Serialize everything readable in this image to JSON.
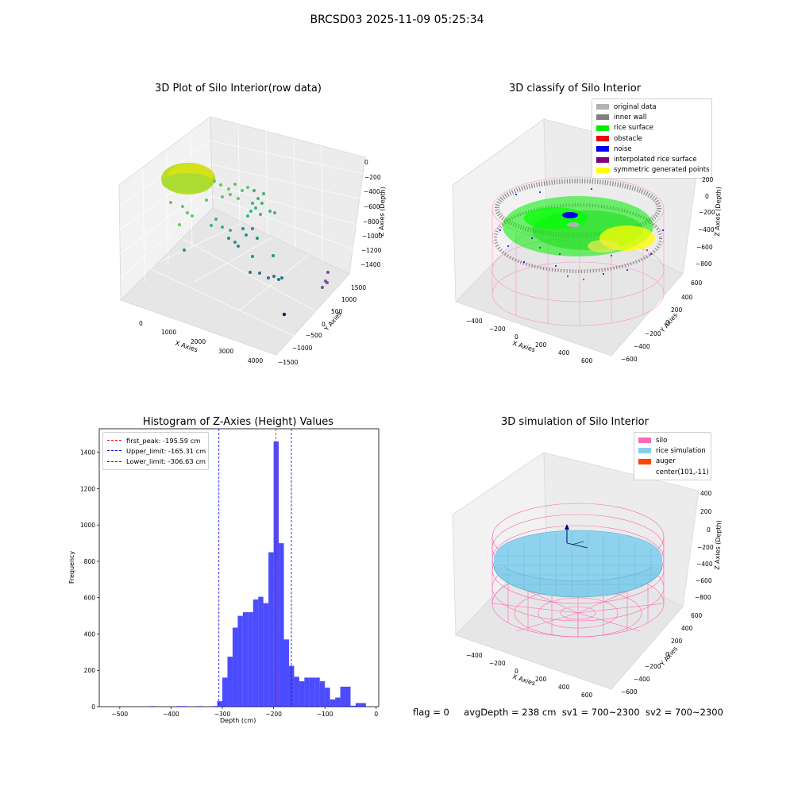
{
  "suptitle": "BRCSD03 2025-11-09 05:25:34",
  "panels": {
    "raw": {
      "title": "3D Plot of Silo Interior(row data)",
      "xlabel": "X Axies",
      "ylabel": "Y Axies",
      "zlabel": "Z Axies (Depth)",
      "xticks": [
        "0",
        "1000",
        "2000",
        "3000",
        "4000"
      ],
      "yticks": [
        "−1500",
        "−1000",
        "−500",
        "0",
        "500",
        "1000",
        "1500"
      ],
      "zticks": [
        "0",
        "−200",
        "−400",
        "−600",
        "−800",
        "−1000",
        "−1200",
        "−1400"
      ]
    },
    "classify": {
      "title": "3D classify of Silo Interior",
      "xlabel": "X Axies",
      "ylabel": "Y Axies",
      "zlabel": "Z Axies (Depth)",
      "xticks": [
        "−400",
        "−200",
        "0",
        "200",
        "400",
        "600"
      ],
      "yticks": [
        "−600",
        "−400",
        "−200",
        "0",
        "200",
        "400",
        "600"
      ],
      "zticks": [
        "200",
        "0",
        "−200",
        "−400",
        "−600",
        "−800"
      ],
      "legend": [
        {
          "label": "original data",
          "color": "#b3b3b3"
        },
        {
          "label": "inner wall",
          "color": "#808080"
        },
        {
          "label": "rice surface",
          "color": "#00ee00"
        },
        {
          "label": "obstacle",
          "color": "#ee0000"
        },
        {
          "label": "noise",
          "color": "#0000ee"
        },
        {
          "label": "interpolated rice surface",
          "color": "#800080"
        },
        {
          "label": "symmetric generated points",
          "color": "#ffff00"
        }
      ]
    },
    "simulation": {
      "title": "3D simulation of Silo Interior",
      "xlabel": "X Axies",
      "ylabel": "Y Axies",
      "zlabel": "Z Axies (Depth)",
      "xticks": [
        "−400",
        "−200",
        "0",
        "200",
        "400",
        "600"
      ],
      "yticks": [
        "−600",
        "−400",
        "−200",
        "0",
        "200",
        "400",
        "600"
      ],
      "zticks": [
        "400",
        "200",
        "0",
        "−200",
        "−400",
        "−600",
        "−800"
      ],
      "legend": [
        {
          "label": "silo",
          "color": "#ff69b4"
        },
        {
          "label": "rice simulation",
          "color": "#87ceeb"
        },
        {
          "label": "auger",
          "color": "#ff4500"
        },
        {
          "label": "center(101,-11)",
          "color": ""
        }
      ]
    }
  },
  "chart_data": [
    {
      "type": "bar",
      "title": "Histogram of Z-Axies (Height) Values",
      "xlabel": "Depth (cm)",
      "ylabel": "Frequency",
      "xlim": [
        -540,
        5
      ],
      "ylim": [
        0,
        1530
      ],
      "xticks": [
        -500,
        -400,
        -300,
        -200,
        -100,
        0
      ],
      "yticks": [
        0,
        200,
        400,
        600,
        800,
        1000,
        1200,
        1400
      ],
      "bar_color": "#0000ff",
      "bin_width": 10,
      "bins": [
        {
          "x": -440,
          "count": 3
        },
        {
          "x": -390,
          "count": 3
        },
        {
          "x": -380,
          "count": 3
        },
        {
          "x": -350,
          "count": 3
        },
        {
          "x": -320,
          "count": 3
        },
        {
          "x": -310,
          "count": 30
        },
        {
          "x": -300,
          "count": 160
        },
        {
          "x": -290,
          "count": 275
        },
        {
          "x": -280,
          "count": 435
        },
        {
          "x": -270,
          "count": 500
        },
        {
          "x": -260,
          "count": 520
        },
        {
          "x": -250,
          "count": 520
        },
        {
          "x": -240,
          "count": 590
        },
        {
          "x": -230,
          "count": 605
        },
        {
          "x": -220,
          "count": 570
        },
        {
          "x": -210,
          "count": 850
        },
        {
          "x": -200,
          "count": 1460
        },
        {
          "x": -190,
          "count": 900
        },
        {
          "x": -180,
          "count": 370
        },
        {
          "x": -170,
          "count": 225
        },
        {
          "x": -160,
          "count": 165
        },
        {
          "x": -150,
          "count": 140
        },
        {
          "x": -140,
          "count": 160
        },
        {
          "x": -130,
          "count": 160
        },
        {
          "x": -120,
          "count": 160
        },
        {
          "x": -110,
          "count": 140
        },
        {
          "x": -100,
          "count": 105
        },
        {
          "x": -90,
          "count": 40
        },
        {
          "x": -80,
          "count": 50
        },
        {
          "x": -70,
          "count": 110
        },
        {
          "x": -60,
          "count": 110
        },
        {
          "x": -50,
          "count": 5
        },
        {
          "x": -40,
          "count": 20
        },
        {
          "x": -30,
          "count": 20
        }
      ],
      "vlines": [
        {
          "label": "first_peak: -195.59 cm",
          "x": -195.59,
          "color": "#ff0000"
        },
        {
          "label": "Upper_limit: -165.31 cm",
          "x": -165.31,
          "color": "#0000ff"
        },
        {
          "label": "Lower_limit: -306.63 cm",
          "x": -306.63,
          "color": "#0000ff"
        }
      ],
      "legend_position": "upper-left"
    }
  ],
  "footer": {
    "flag": "flag = 0",
    "avgdepth": "avgDepth = 238 cm",
    "sv1": "sv1 = 700~2300",
    "sv2": "sv2 = 700~2300"
  }
}
